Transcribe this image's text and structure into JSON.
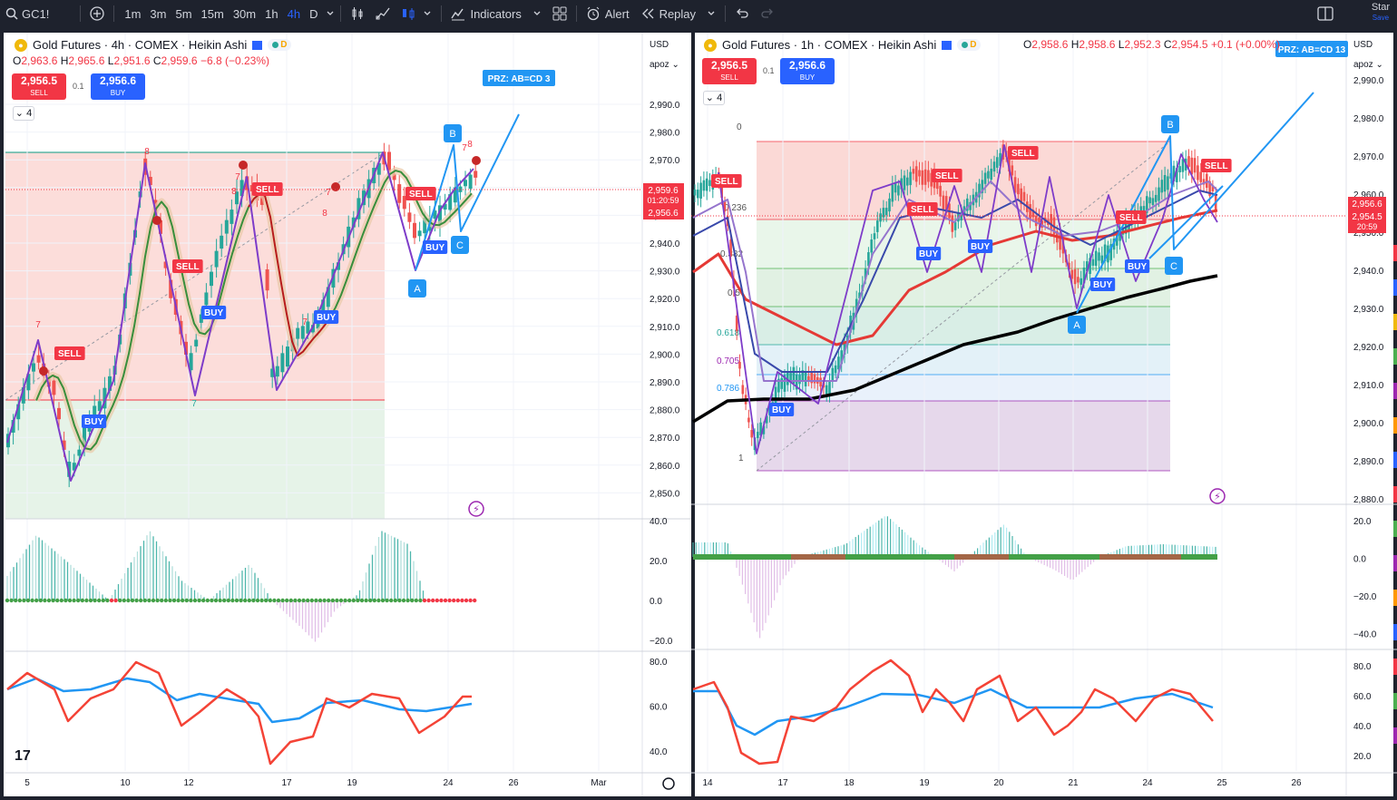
{
  "toolbar": {
    "symbol": "GC1!",
    "timeframes": [
      "1m",
      "3m",
      "5m",
      "15m",
      "30m",
      "1h",
      "4h",
      "D"
    ],
    "active_timeframe": "4h",
    "indicators_label": "Indicators",
    "alert_label": "Alert",
    "replay_label": "Replay",
    "star_label": "Star",
    "save_label": "Save"
  },
  "left_chart": {
    "title": "Gold Futures · 4h · COMEX · Heikin Ashi",
    "status_letter": "D",
    "ohlc": {
      "o": "2,963.6",
      "h": "2,965.6",
      "l": "2,951.6",
      "c": "2,959.6",
      "chg": "−6.8 (−0.23%)"
    },
    "sell_price": "2,956.5",
    "sell_label": "SELL",
    "buy_price": "2,956.6",
    "buy_label": "BUY",
    "spread": "0.1",
    "collapse_count": "4",
    "currency": "USD",
    "scale_mode": "apoz",
    "price_ticks": [
      "2,990.0",
      "2,980.0",
      "2,970.0",
      "2,960.0",
      "2,950.0",
      "2,940.0",
      "2,930.0",
      "2,920.0",
      "2,910.0",
      "2,900.0",
      "2,890.0",
      "2,880.0",
      "2,870.0",
      "2,860.0",
      "2,850.0"
    ],
    "last_price_tag": "2,959.6",
    "countdown": "01:20:59",
    "bid_tag": "2,956.6",
    "osc_ticks": [
      "40.0",
      "20.0",
      "0.0",
      "−20.0"
    ],
    "rsi_ticks": [
      "80.0",
      "60.0",
      "40.0"
    ],
    "date_ticks": [
      "5",
      "10",
      "12",
      "17",
      "19",
      "24",
      "26",
      "Mar"
    ],
    "prz_label": "PRZ: AB=CD 3",
    "pattern_labels": [
      "A",
      "B",
      "C"
    ],
    "signal_labels": {
      "sell": "SELL",
      "buy": "BUY"
    },
    "td_counts": [
      "7",
      "8",
      "7",
      "8",
      "7",
      "8",
      "7",
      "7",
      "7",
      "8"
    ]
  },
  "right_chart": {
    "title": "Gold Futures · 1h · COMEX · Heikin Ashi",
    "status_letter": "D",
    "ohlc": {
      "o": "2,958.6",
      "h": "2,958.6",
      "l": "2,952.3",
      "c": "2,954.5",
      "chg": "+0.1 (+0.00%)"
    },
    "sell_price": "2,956.5",
    "sell_label": "SELL",
    "buy_price": "2,956.6",
    "buy_label": "BUY",
    "spread": "0.1",
    "collapse_count": "4",
    "currency": "USD",
    "scale_mode": "apoz",
    "price_ticks": [
      "2,990.0",
      "2,980.0",
      "2,970.0",
      "2,960.0",
      "2,950.0",
      "2,940.0",
      "2,930.0",
      "2,920.0",
      "2,910.0",
      "2,900.0",
      "2,890.0",
      "2,880.0"
    ],
    "sell_tag": "2,956.6",
    "last_price_tag": "2,954.5",
    "countdown": "20:59",
    "osc_ticks": [
      "20.0",
      "0.0",
      "−20.0",
      "−40.0"
    ],
    "rsi_ticks": [
      "80.0",
      "60.0",
      "40.0",
      "20.0"
    ],
    "date_ticks": [
      "14",
      "17",
      "18",
      "19",
      "20",
      "21",
      "24",
      "25",
      "26"
    ],
    "prz_label": "PRZ: AB=CD 13",
    "fib_labels": [
      "0",
      "1",
      "0.236",
      "0.382",
      "0.5",
      "0.618",
      "0.705",
      "0.786"
    ],
    "pattern_labels": [
      "A",
      "B",
      "C"
    ],
    "signal_labels": {
      "sell": "SELL",
      "buy": "BUY"
    }
  },
  "colors": {
    "bull": "#26a69a",
    "bear": "#ef5350",
    "sell": "#f23645",
    "buy": "#2962ff",
    "pattern": "#2196f3",
    "zigzag": "#7e3cc9",
    "ma_black": "#000000"
  }
}
